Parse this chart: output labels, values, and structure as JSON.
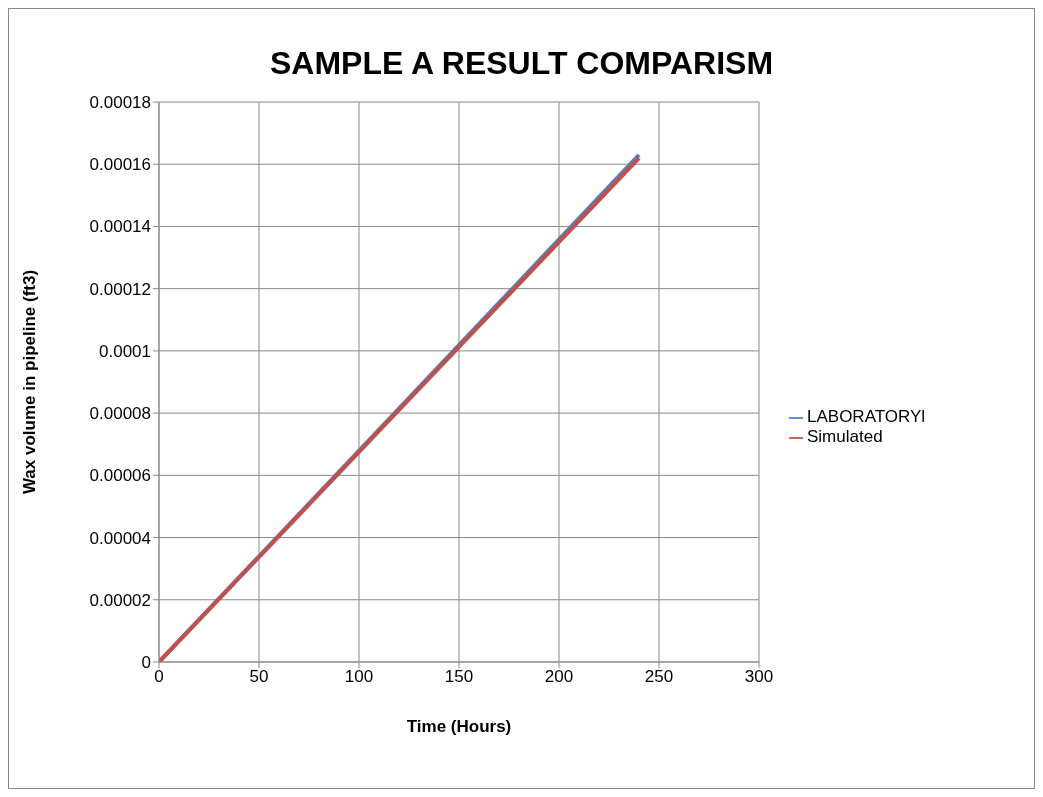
{
  "chart_data": {
    "type": "line",
    "title": "SAMPLE A RESULT COMPARISM",
    "xlabel": "Time (Hours)",
    "ylabel": "Wax volume in pipeline (ft3)",
    "x": [
      0,
      240
    ],
    "series": [
      {
        "name": "LABORATORYl",
        "color": "#4f81bd",
        "values": [
          0,
          0.000163
        ]
      },
      {
        "name": "Simulated",
        "color": "#c0504d",
        "values": [
          0,
          0.000162
        ]
      }
    ],
    "xlim": [
      0,
      300
    ],
    "xticks": [
      0,
      50,
      100,
      150,
      200,
      250,
      300
    ],
    "ylim": [
      0,
      0.00018
    ],
    "yticks": [
      0,
      {
        "value": 2e-05,
        "label": "0.00002"
      },
      {
        "value": 4e-05,
        "label": "0.00004"
      },
      {
        "value": 6e-05,
        "label": "0.00006"
      },
      {
        "value": 8e-05,
        "label": "0.00008"
      },
      0.0001,
      0.00012,
      0.00014,
      0.00016,
      0.00018
    ],
    "grid": true,
    "legend": "right",
    "marker": "none",
    "line_style": "solid"
  }
}
